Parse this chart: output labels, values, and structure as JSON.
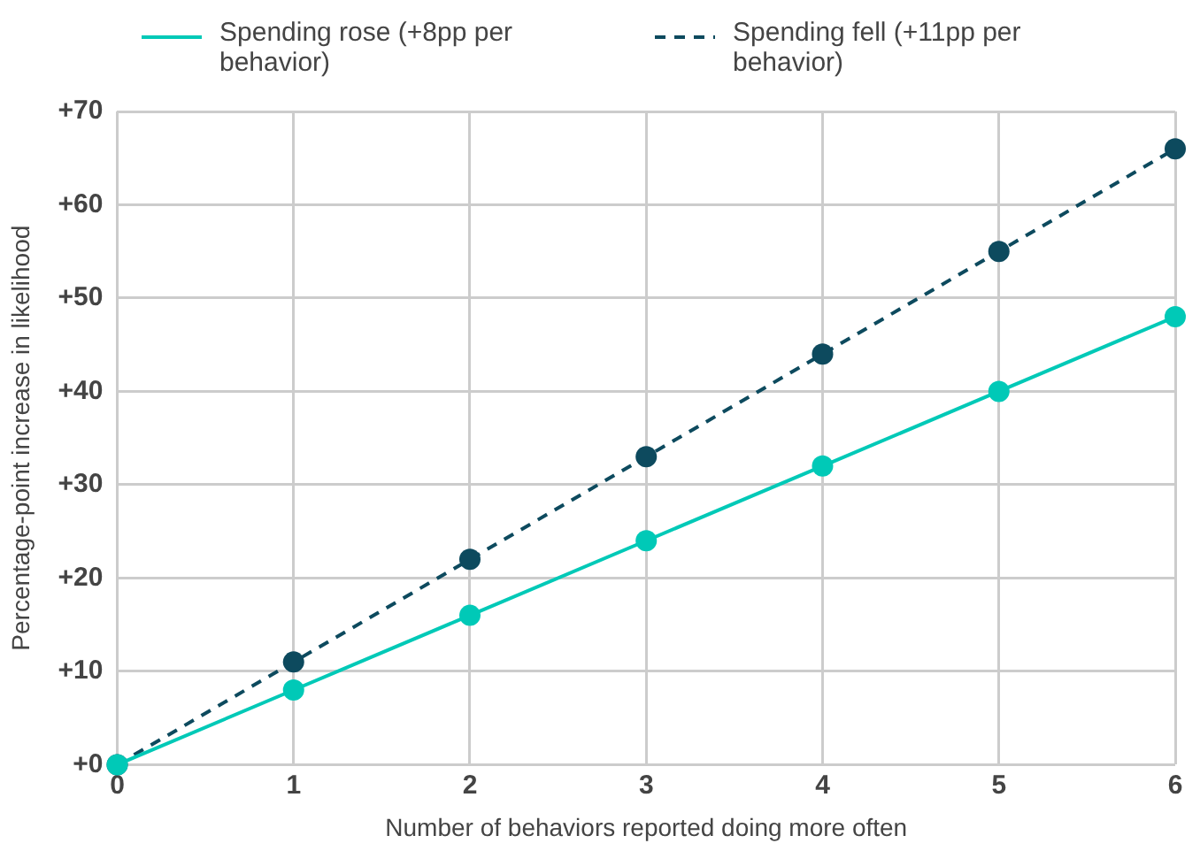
{
  "chart_data": {
    "type": "line",
    "xlabel": "Number of behaviors reported doing more often",
    "ylabel": "Percentage-point increase in likelihood",
    "x": [
      0,
      1,
      2,
      3,
      4,
      5,
      6
    ],
    "series": [
      {
        "name": "Spending rose (+8pp per behavior)",
        "color": "#00c9b7",
        "values": [
          0,
          8,
          16,
          24,
          32,
          40,
          48
        ],
        "line_style": "solid"
      },
      {
        "name": "Spending fell (+11pp per behavior)",
        "color": "#0d4a5e",
        "values": [
          0,
          11,
          22,
          33,
          44,
          55,
          66
        ],
        "line_style": "dashed"
      }
    ],
    "xlim": [
      0,
      6
    ],
    "xticks": [
      0,
      1,
      2,
      3,
      4,
      5,
      6
    ],
    "ylim": [
      0,
      70
    ],
    "yticks": [
      {
        "value": 0,
        "label": "+0"
      },
      {
        "value": 10,
        "label": "+10"
      },
      {
        "value": 20,
        "label": "+20"
      },
      {
        "value": 30,
        "label": "+30"
      },
      {
        "value": 40,
        "label": "+40"
      },
      {
        "value": 50,
        "label": "+50"
      },
      {
        "value": 60,
        "label": "+60"
      },
      {
        "value": 70,
        "label": "+70"
      }
    ],
    "grid": true,
    "legend": "top left",
    "marker": "circle"
  }
}
